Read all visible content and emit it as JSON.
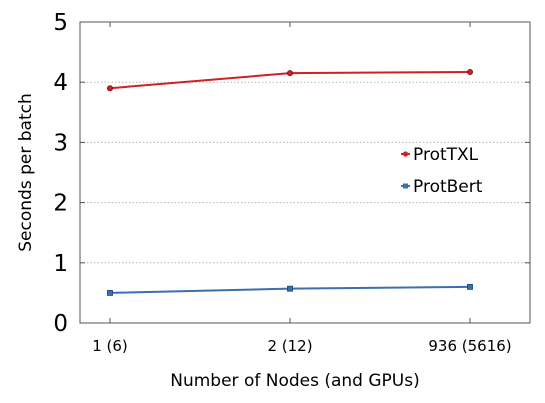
{
  "chart_data": {
    "type": "line",
    "categories": [
      "1 (6)",
      "2 (12)",
      "936 (5616)"
    ],
    "series": [
      {
        "name": "ProtTXL",
        "values": [
          3.9,
          4.15,
          4.17
        ],
        "color": "#cc2222",
        "marker": "circle"
      },
      {
        "name": "ProtBert",
        "values": [
          0.5,
          0.57,
          0.6
        ],
        "color": "#3a6fb0",
        "marker": "square"
      }
    ],
    "title": "",
    "xlabel": "Number of Nodes (and GPUs)",
    "ylabel": "Seconds per batch",
    "ylim": [
      0,
      5
    ],
    "yticks": [
      0,
      1,
      2,
      3,
      4,
      5
    ],
    "grid": "horizontal dotted",
    "legend": "right"
  }
}
